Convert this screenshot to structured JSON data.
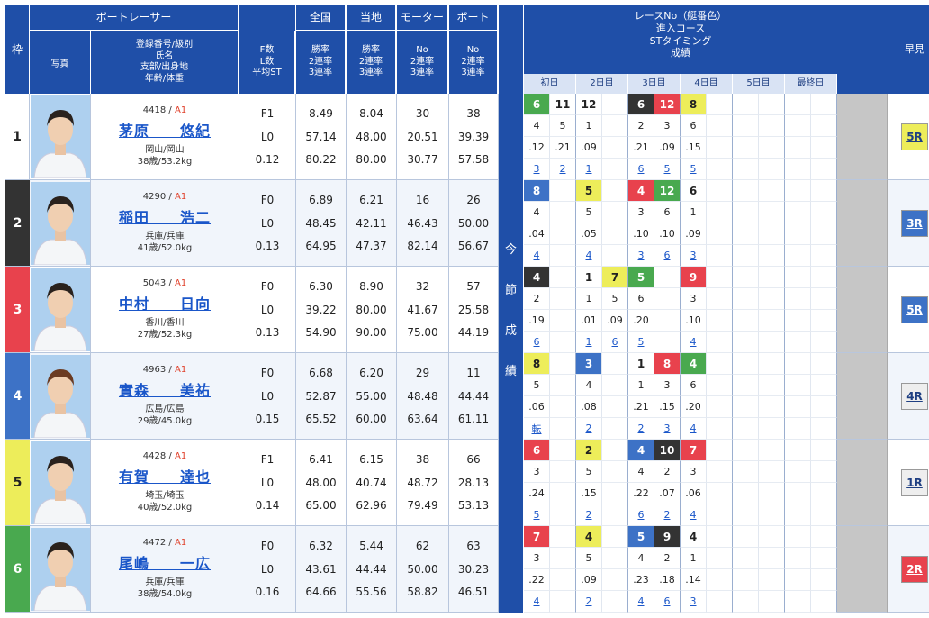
{
  "header": {
    "waku": "枠",
    "photo": "写真",
    "racer_title": "ボートレーサー",
    "racer_sub": [
      "登録番号/級別",
      "氏名",
      "支部/出身地",
      "年齢/体重"
    ],
    "fl_sub": [
      "F数",
      "L数",
      "平均ST"
    ],
    "zenkoku": "全国",
    "tochi": "当地",
    "motor": "モーター",
    "boat": "ボート",
    "rate_sub": [
      "勝率",
      "2連率",
      "3連率"
    ],
    "no_sub": [
      "No",
      "2連率",
      "3連率"
    ],
    "konsetsu": [
      "今",
      "節",
      "成",
      "績"
    ],
    "race_head": [
      "レースNo（艇番色）",
      "進入コース",
      "STタイミング",
      "成績"
    ],
    "days": [
      "初日",
      "2日目",
      "3日目",
      "4日目",
      "5日目",
      "最終日"
    ],
    "hayami": "早見"
  },
  "colors": {
    "header_bg": "#1f4fa8",
    "lane": [
      "#ffffff",
      "#333333",
      "#e8424d",
      "#3d72c6",
      "#eded5a",
      "#49a94f"
    ],
    "lane_text": [
      "#222222",
      "#ffffff",
      "#ffffff",
      "#ffffff",
      "#222222",
      "#ffffff"
    ]
  },
  "racers": [
    {
      "waku": "1",
      "reg": "4418",
      "cls": "A1",
      "name": "茅原　　悠紀",
      "branch": "岡山/岡山",
      "age": "38歳/53.2kg",
      "fl": [
        "F1",
        "L0",
        "0.12"
      ],
      "zen": [
        "8.49",
        "57.14",
        "80.22"
      ],
      "tochi": [
        "8.04",
        "48.00",
        "80.00"
      ],
      "motor": [
        "30",
        "20.51",
        "30.77"
      ],
      "boat": [
        "38",
        "39.39",
        "57.58"
      ],
      "races": [
        [
          "6",
          "11",
          "12",
          "",
          "6",
          "12",
          "8",
          "",
          "",
          "",
          "",
          ""
        ],
        [
          "4",
          "5",
          "1",
          "",
          "2",
          "3",
          "6",
          "",
          "",
          "",
          "",
          ""
        ],
        [
          ".12",
          ".21",
          ".09",
          "",
          ".21",
          ".09",
          ".15",
          "",
          "",
          "",
          "",
          ""
        ],
        [
          "3",
          "2",
          "1",
          "",
          "6",
          "5",
          "5",
          "",
          "",
          "",
          "",
          ""
        ]
      ],
      "lanes": [
        6,
        1,
        1,
        0,
        2,
        3,
        5,
        0,
        0,
        0,
        0,
        0
      ],
      "hayami": "5R",
      "hayami_color": "#eded5a"
    },
    {
      "waku": "2",
      "reg": "4290",
      "cls": "A1",
      "name": "稲田　　浩二",
      "branch": "兵庫/兵庫",
      "age": "41歳/52.0kg",
      "fl": [
        "F0",
        "L0",
        "0.13"
      ],
      "zen": [
        "6.89",
        "48.45",
        "64.95"
      ],
      "tochi": [
        "6.21",
        "42.11",
        "47.37"
      ],
      "motor": [
        "16",
        "46.43",
        "82.14"
      ],
      "boat": [
        "26",
        "50.00",
        "56.67"
      ],
      "races": [
        [
          "8",
          "",
          "5",
          "",
          "4",
          "12",
          "6",
          "",
          "",
          "",
          "",
          ""
        ],
        [
          "4",
          "",
          "5",
          "",
          "3",
          "6",
          "1",
          "",
          "",
          "",
          "",
          ""
        ],
        [
          ".04",
          "",
          ".05",
          "",
          ".10",
          ".10",
          ".09",
          "",
          "",
          "",
          "",
          ""
        ],
        [
          "4",
          "",
          "4",
          "",
          "3",
          "6",
          "3",
          "",
          "",
          "",
          "",
          ""
        ]
      ],
      "lanes": [
        4,
        0,
        5,
        0,
        3,
        6,
        1,
        0,
        0,
        0,
        0,
        0
      ],
      "hayami": "3R",
      "hayami_color": "#3d72c6"
    },
    {
      "waku": "3",
      "reg": "5043",
      "cls": "A1",
      "name": "中村　　日向",
      "branch": "香川/香川",
      "age": "27歳/52.3kg",
      "fl": [
        "F0",
        "L0",
        "0.13"
      ],
      "zen": [
        "6.30",
        "39.22",
        "54.90"
      ],
      "tochi": [
        "8.90",
        "80.00",
        "90.00"
      ],
      "motor": [
        "32",
        "41.67",
        "75.00"
      ],
      "boat": [
        "57",
        "25.58",
        "44.19"
      ],
      "races": [
        [
          "4",
          "",
          "1",
          "7",
          "5",
          "",
          "9",
          "",
          "",
          "",
          "",
          ""
        ],
        [
          "2",
          "",
          "1",
          "5",
          "6",
          "",
          "3",
          "",
          "",
          "",
          "",
          ""
        ],
        [
          ".19",
          "",
          ".01",
          ".09",
          ".20",
          "",
          ".10",
          "",
          "",
          "",
          "",
          ""
        ],
        [
          "6",
          "",
          "1",
          "6",
          "5",
          "",
          "4",
          "",
          "",
          "",
          "",
          ""
        ]
      ],
      "lanes": [
        2,
        0,
        1,
        5,
        6,
        0,
        3,
        0,
        0,
        0,
        0,
        0
      ],
      "hayami": "5R",
      "hayami_color": "#3d72c6"
    },
    {
      "waku": "4",
      "reg": "4963",
      "cls": "A1",
      "name": "實森　　美祐",
      "branch": "広島/広島",
      "age": "29歳/45.0kg",
      "fl": [
        "F0",
        "L0",
        "0.15"
      ],
      "zen": [
        "6.68",
        "52.87",
        "65.52"
      ],
      "tochi": [
        "6.20",
        "55.00",
        "60.00"
      ],
      "motor": [
        "29",
        "48.48",
        "63.64"
      ],
      "boat": [
        "11",
        "44.44",
        "61.11"
      ],
      "races": [
        [
          "8",
          "",
          "3",
          "",
          "1",
          "8",
          "4",
          "",
          "",
          "",
          "",
          ""
        ],
        [
          "5",
          "",
          "4",
          "",
          "1",
          "3",
          "6",
          "",
          "",
          "",
          "",
          ""
        ],
        [
          ".06",
          "",
          ".08",
          "",
          ".21",
          ".15",
          ".20",
          "",
          "",
          "",
          "",
          ""
        ],
        [
          "転",
          "",
          "2",
          "",
          "2",
          "3",
          "4",
          "",
          "",
          "",
          "",
          ""
        ]
      ],
      "lanes": [
        5,
        0,
        4,
        0,
        1,
        3,
        6,
        0,
        0,
        0,
        0,
        0
      ],
      "hayami": "4R",
      "hayami_color": "#eeeeee"
    },
    {
      "waku": "5",
      "reg": "4428",
      "cls": "A1",
      "name": "有賀　　達也",
      "branch": "埼玉/埼玉",
      "age": "40歳/52.0kg",
      "fl": [
        "F1",
        "L0",
        "0.14"
      ],
      "zen": [
        "6.41",
        "48.00",
        "65.00"
      ],
      "tochi": [
        "6.15",
        "40.74",
        "62.96"
      ],
      "motor": [
        "38",
        "48.72",
        "79.49"
      ],
      "boat": [
        "66",
        "28.13",
        "53.13"
      ],
      "races": [
        [
          "6",
          "",
          "2",
          "",
          "4",
          "10",
          "7",
          "",
          "",
          "",
          "",
          ""
        ],
        [
          "3",
          "",
          "5",
          "",
          "4",
          "2",
          "3",
          "",
          "",
          "",
          "",
          ""
        ],
        [
          ".24",
          "",
          ".15",
          "",
          ".22",
          ".07",
          ".06",
          "",
          "",
          "",
          "",
          ""
        ],
        [
          "5",
          "",
          "2",
          "",
          "6",
          "2",
          "4",
          "",
          "",
          "",
          "",
          ""
        ]
      ],
      "lanes": [
        3,
        0,
        5,
        0,
        4,
        2,
        3,
        0,
        0,
        0,
        0,
        0
      ],
      "hayami": "1R",
      "hayami_color": "#eeeeee"
    },
    {
      "waku": "6",
      "reg": "4472",
      "cls": "A1",
      "name": "尾嶋　　一広",
      "branch": "兵庫/兵庫",
      "age": "38歳/54.0kg",
      "fl": [
        "F0",
        "L0",
        "0.16"
      ],
      "zen": [
        "6.32",
        "43.61",
        "64.66"
      ],
      "tochi": [
        "5.44",
        "44.44",
        "55.56"
      ],
      "motor": [
        "62",
        "50.00",
        "58.82"
      ],
      "boat": [
        "63",
        "30.23",
        "46.51"
      ],
      "races": [
        [
          "7",
          "",
          "4",
          "",
          "5",
          "9",
          "4",
          "",
          "",
          "",
          "",
          ""
        ],
        [
          "3",
          "",
          "5",
          "",
          "4",
          "2",
          "1",
          "",
          "",
          "",
          "",
          ""
        ],
        [
          ".22",
          "",
          ".09",
          "",
          ".23",
          ".18",
          ".14",
          "",
          "",
          "",
          "",
          ""
        ],
        [
          "4",
          "",
          "2",
          "",
          "4",
          "6",
          "3",
          "",
          "",
          "",
          "",
          ""
        ]
      ],
      "lanes": [
        3,
        0,
        5,
        0,
        4,
        2,
        1,
        0,
        0,
        0,
        0,
        0
      ],
      "hayami": "2R",
      "hayami_color": "#e8424d"
    }
  ]
}
